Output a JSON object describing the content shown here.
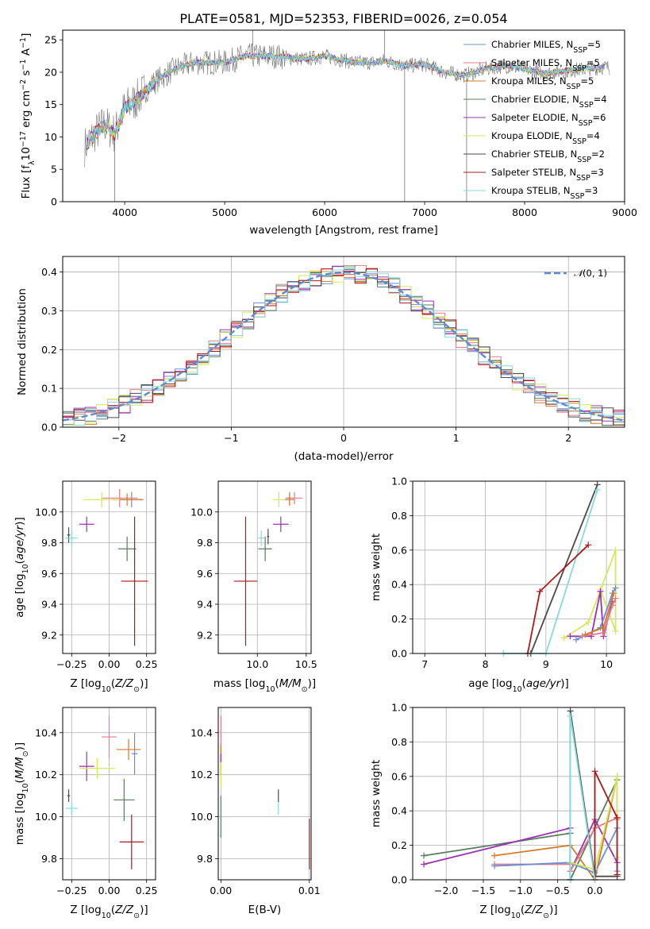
{
  "title": "PLATE=0581, MJD=52353, FIBERID=0026, z=0.054",
  "models": [
    {
      "name": "Chabrier MILES, N_SSP=5",
      "label": "Chabrier MILES, N",
      "sub": "SSP",
      "suffix": "=5",
      "color": "#6a8fd8"
    },
    {
      "name": "Salpeter MILES, N_SSP=5",
      "label": "Salpeter MILES, N",
      "sub": "SSP",
      "suffix": "=5",
      "color": "#e87a8a"
    },
    {
      "name": "Kroupa MILES, N_SSP=5",
      "label": "Kroupa MILES, N",
      "sub": "SSP",
      "suffix": "=5",
      "color": "#d97b24"
    },
    {
      "name": "Chabrier ELODIE, N_SSP=4",
      "label": "Chabrier ELODIE, N",
      "sub": "SSP",
      "suffix": "=4",
      "color": "#567f5c"
    },
    {
      "name": "Salpeter ELODIE, N_SSP=6",
      "label": "Salpeter ELODIE, N",
      "sub": "SSP",
      "suffix": "=6",
      "color": "#9b30b5"
    },
    {
      "name": "Kroupa ELODIE, N_SSP=4",
      "label": "Kroupa ELODIE, N",
      "sub": "SSP",
      "suffix": "=4",
      "color": "#d4e85a"
    },
    {
      "name": "Chabrier STELIB, N_SSP=2",
      "label": "Chabrier STELIB, N",
      "sub": "SSP",
      "suffix": "=2",
      "color": "#4a4a4a"
    },
    {
      "name": "Salpeter STELIB, N_SSP=3",
      "label": "Salpeter STELIB, N",
      "sub": "SSP",
      "suffix": "=3",
      "color": "#b01818"
    },
    {
      "name": "Kroupa STELIB, N_SSP=3",
      "label": "Kroupa STELIB, N",
      "sub": "SSP",
      "suffix": "=3",
      "color": "#86dadd"
    }
  ],
  "chart_data": [
    {
      "type": "line",
      "id": "spectrum",
      "xlabel": "wavelength [Angstrom, rest frame]",
      "ylabel": "Flux [f_λ 10^-17 erg cm^-2 s^-1 A^-1]",
      "xlim": [
        3380,
        9000
      ],
      "ylim": [
        0,
        26.5
      ],
      "xticks": [
        4000,
        5000,
        6000,
        7000,
        8000,
        9000
      ],
      "yticks": [
        0,
        5,
        10,
        15,
        20,
        25
      ],
      "spectrum_shape": {
        "x": [
          3600,
          3700,
          3800,
          3900,
          4000,
          4100,
          4300,
          4500,
          4700,
          5000,
          5200,
          5500,
          5800,
          6000,
          6300,
          6500,
          6600,
          6800,
          7000,
          7200,
          7400,
          7600,
          7800,
          8000,
          8200,
          8400,
          8600,
          8800,
          8850
        ],
        "y": [
          8.5,
          10.5,
          12,
          10.5,
          14.5,
          15.5,
          18.5,
          20.5,
          21.5,
          21.5,
          22.5,
          22.5,
          22,
          22.5,
          21.5,
          21.5,
          21.8,
          21,
          21.2,
          20,
          19.5,
          20.5,
          21,
          20.5,
          19.8,
          20.2,
          20.5,
          20.8,
          20.7
        ]
      },
      "grid": false,
      "legend": "top-right"
    },
    {
      "type": "line",
      "id": "residuals",
      "xlabel": "(data-model)/error",
      "ylabel": "Normed distribution",
      "xlim": [
        -2.5,
        2.5
      ],
      "ylim": [
        0,
        0.44
      ],
      "xticks": [
        -2,
        -1,
        0,
        1,
        2
      ],
      "yticks": [
        0.0,
        0.1,
        0.2,
        0.3,
        0.4
      ],
      "reference": {
        "label": "N(0,1)",
        "color": "#5b8ad6"
      },
      "grid": true,
      "legend": "top-right"
    },
    {
      "type": "scatter",
      "id": "age_vs_Z",
      "xlabel": "Z [log10(Z/Z⊙)]",
      "ylabel": "age [log10(age/yr)]",
      "xlim": [
        -0.31,
        0.31
      ],
      "ylim": [
        9.08,
        10.2
      ],
      "xticks": [
        -0.25,
        0.0,
        0.25
      ],
      "xticklabels": [
        "-0.25",
        "0.00",
        "0.25"
      ],
      "yticks": [
        9.2,
        9.4,
        9.6,
        9.8,
        10.0
      ],
      "points": [
        {
          "m": 0,
          "x": 0.15,
          "y": 10.08,
          "ex": 0.08,
          "ey": 0.05
        },
        {
          "m": 1,
          "x": 0.07,
          "y": 10.09,
          "ex": 0.12,
          "ey": 0.06
        },
        {
          "m": 2,
          "x": 0.12,
          "y": 10.08,
          "ex": 0.1,
          "ey": 0.04
        },
        {
          "m": 3,
          "x": 0.12,
          "y": 9.76,
          "ex": 0.06,
          "ey": 0.08
        },
        {
          "m": 4,
          "x": -0.15,
          "y": 9.92,
          "ex": 0.05,
          "ey": 0.05
        },
        {
          "m": 5,
          "x": -0.05,
          "y": 10.08,
          "ex": 0.12,
          "ey": 0.05
        },
        {
          "m": 6,
          "x": -0.27,
          "y": 9.85,
          "ex": 0.01,
          "ey": 0.05
        },
        {
          "m": 7,
          "x": 0.17,
          "y": 9.55,
          "ex": 0.09,
          "ey": 0.42
        },
        {
          "m": 8,
          "x": -0.25,
          "y": 9.83,
          "ex": 0.04,
          "ey": 0.05
        }
      ]
    },
    {
      "type": "scatter",
      "id": "age_vs_mass",
      "xlabel": "mass [log10(M/M⊙)]",
      "ylabel": "",
      "xlim": [
        9.6,
        10.55
      ],
      "ylim": [
        9.08,
        10.2
      ],
      "xticks": [
        10.0,
        10.5
      ],
      "xticklabels": [
        "10.0",
        "10.5"
      ],
      "yticks": [
        9.2,
        9.4,
        9.6,
        9.8,
        10.0
      ],
      "points": [
        {
          "m": 0,
          "x": 10.33,
          "y": 10.09,
          "ex": 0.04,
          "ey": 0.04
        },
        {
          "m": 1,
          "x": 10.38,
          "y": 10.09,
          "ex": 0.08,
          "ey": 0.04
        },
        {
          "m": 2,
          "x": 10.33,
          "y": 10.08,
          "ex": 0.05,
          "ey": 0.04
        },
        {
          "m": 3,
          "x": 10.08,
          "y": 9.76,
          "ex": 0.07,
          "ey": 0.08
        },
        {
          "m": 4,
          "x": 10.24,
          "y": 9.92,
          "ex": 0.08,
          "ey": 0.05
        },
        {
          "m": 5,
          "x": 10.22,
          "y": 10.08,
          "ex": 0.06,
          "ey": 0.05
        },
        {
          "m": 6,
          "x": 10.11,
          "y": 9.84,
          "ex": 0.01,
          "ey": 0.05
        },
        {
          "m": 7,
          "x": 9.88,
          "y": 9.55,
          "ex": 0.12,
          "ey": 0.42
        },
        {
          "m": 8,
          "x": 10.04,
          "y": 9.83,
          "ex": 0.03,
          "ey": 0.05
        }
      ]
    },
    {
      "type": "line",
      "id": "massweight_vs_age",
      "xlabel": "age [log10(age/yr)]",
      "ylabel": "mass weight",
      "xlim": [
        6.8,
        10.3
      ],
      "ylim": [
        0,
        1
      ],
      "xticks": [
        7,
        8,
        9,
        10
      ],
      "yticks": [
        0.0,
        0.2,
        0.4,
        0.6,
        0.8,
        1.0
      ],
      "series": [
        {
          "m": 3,
          "x": [
            6.97,
            9.7,
            9.8,
            9.85
          ],
          "y": [
            0.0,
            0.58,
            0.15,
            0.27
          ]
        },
        {
          "m": 6,
          "x": 8.75,
          "x2": null,
          "y": null,
          "pts": [
            [
              8.75,
              0.0
            ],
            [
              9.85,
              0.98
            ]
          ]
        },
        {
          "m": 8,
          "pts": [
            [
              8.3,
              0.0
            ],
            [
              9.0,
              0.0
            ],
            [
              9.85,
              0.95
            ]
          ]
        },
        {
          "m": 7,
          "pts": [
            [
              8.7,
              0.0
            ],
            [
              8.9,
              0.36
            ],
            [
              9.7,
              0.63
            ]
          ]
        },
        {
          "m": 5,
          "pts": [
            [
              9.3,
              0.09
            ],
            [
              9.7,
              0.18
            ],
            [
              10.15,
              0.6
            ],
            [
              10.15,
              0.13
            ],
            [
              9.9,
              0.37
            ]
          ]
        },
        {
          "m": 4,
          "pts": [
            [
              9.4,
              0.1
            ],
            [
              9.75,
              0.1
            ],
            [
              9.9,
              0.36
            ],
            [
              9.95,
              0.1
            ],
            [
              10.1,
              0.3
            ]
          ]
        },
        {
          "m": 0,
          "pts": [
            [
              9.5,
              0.08
            ],
            [
              9.9,
              0.15
            ],
            [
              10.1,
              0.35
            ],
            [
              10.15,
              0.38
            ]
          ]
        },
        {
          "m": 1,
          "pts": [
            [
              9.6,
              0.1
            ],
            [
              9.95,
              0.12
            ],
            [
              10.1,
              0.28
            ],
            [
              10.15,
              0.32
            ]
          ]
        },
        {
          "m": 2,
          "pts": [
            [
              9.65,
              0.11
            ],
            [
              9.95,
              0.15
            ],
            [
              10.12,
              0.35
            ]
          ]
        }
      ]
    },
    {
      "type": "scatter",
      "id": "mass_vs_Z",
      "xlabel": "Z [log10(Z/Z⊙)]",
      "ylabel": "mass [log10(M/M⊙)]",
      "xlim": [
        -0.31,
        0.31
      ],
      "ylim": [
        9.7,
        10.52
      ],
      "xticks": [
        -0.25,
        0.0,
        0.25
      ],
      "xticklabels": [
        "-0.25",
        "0.00",
        "0.25"
      ],
      "yticks": [
        9.8,
        10.0,
        10.2,
        10.4
      ],
      "points": [
        {
          "m": 0,
          "x": 0.17,
          "y": 10.3,
          "ex": 0.02,
          "ey": 0.1
        },
        {
          "m": 1,
          "x": 0.0,
          "y": 10.38,
          "ex": 0.05,
          "ey": 0.1
        },
        {
          "m": 2,
          "x": 0.13,
          "y": 10.32,
          "ex": 0.08,
          "ey": 0.05
        },
        {
          "m": 3,
          "x": 0.1,
          "y": 10.08,
          "ex": 0.07,
          "ey": 0.1
        },
        {
          "m": 4,
          "x": -0.15,
          "y": 10.24,
          "ex": 0.05,
          "ey": 0.07
        },
        {
          "m": 5,
          "x": -0.08,
          "y": 10.23,
          "ex": 0.12,
          "ey": 0.05
        },
        {
          "m": 6,
          "x": -0.27,
          "y": 10.1,
          "ex": 0.01,
          "ey": 0.03
        },
        {
          "m": 7,
          "x": 0.15,
          "y": 9.88,
          "ex": 0.08,
          "ey": 0.13
        },
        {
          "m": 8,
          "x": -0.25,
          "y": 10.04,
          "ex": 0.04,
          "ey": 0.03
        }
      ]
    },
    {
      "type": "scatter",
      "id": "mass_vs_EBV",
      "xlabel": "E(B-V)",
      "ylabel": "",
      "xlim": [
        -0.0003,
        0.0102
      ],
      "ylim": [
        9.7,
        10.52
      ],
      "xticks": [
        0.0,
        0.01
      ],
      "xticklabels": [
        "0.00",
        "0.01"
      ],
      "yticks": [
        9.8,
        10.0,
        10.2,
        10.4
      ],
      "points": [
        {
          "m": 0,
          "x": 0.0,
          "y": 10.3,
          "ex": 0.0,
          "ey": 0.05
        },
        {
          "m": 1,
          "x": 0.0,
          "y": 10.4,
          "ex": 0.0,
          "ey": 0.08
        },
        {
          "m": 2,
          "x": 0.0,
          "y": 10.3,
          "ex": 0.0,
          "ey": 0.04
        },
        {
          "m": 3,
          "x": 0.0,
          "y": 10.0,
          "ex": 0.0,
          "ey": 0.1
        },
        {
          "m": 4,
          "x": 0.0,
          "y": 10.25,
          "ex": 0.0,
          "ey": 0.05
        },
        {
          "m": 5,
          "x": 0.0,
          "y": 10.2,
          "ex": 0.0,
          "ey": 0.06
        },
        {
          "m": 6,
          "x": 0.0065,
          "y": 10.1,
          "ex": 0.0,
          "ey": 0.03
        },
        {
          "m": 7,
          "x": 0.01,
          "y": 9.87,
          "ex": 0.0,
          "ey": 0.12
        },
        {
          "m": 8,
          "x": 0.0065,
          "y": 10.04,
          "ex": 0.0,
          "ey": 0.03
        }
      ]
    },
    {
      "type": "line",
      "id": "massweight_vs_Z",
      "xlabel": "Z [log10(Z/Z⊙)]",
      "ylabel": "mass weight",
      "xlim": [
        -2.45,
        0.4
      ],
      "ylim": [
        0,
        1
      ],
      "xticks": [
        -2.0,
        -1.5,
        -1.0,
        -0.5,
        0.0
      ],
      "yticks": [
        0.0,
        0.2,
        0.4,
        0.6,
        0.8,
        1.0
      ],
      "series": [
        {
          "m": 3,
          "pts": [
            [
              -2.3,
              0.14
            ],
            [
              -0.33,
              0.27
            ],
            [
              -0.33,
              0.0
            ],
            [
              0.3,
              0.58
            ]
          ]
        },
        {
          "m": 4,
          "pts": [
            [
              -2.3,
              0.09
            ],
            [
              -0.33,
              0.3
            ],
            [
              -0.33,
              0.05
            ],
            [
              0.0,
              0.35
            ],
            [
              0.3,
              0.1
            ]
          ]
        },
        {
          "m": 2,
          "pts": [
            [
              -1.35,
              0.14
            ],
            [
              -0.33,
              0.2
            ],
            [
              0.0,
              0.0
            ],
            [
              0.3,
              0.6
            ],
            [
              0.3,
              0.35
            ]
          ]
        },
        {
          "m": 1,
          "pts": [
            [
              -1.35,
              0.09
            ],
            [
              -0.33,
              0.09
            ],
            [
              -0.33,
              0.05
            ],
            [
              0.0,
              0.3
            ],
            [
              0.3,
              0.36
            ]
          ]
        },
        {
          "m": 0,
          "pts": [
            [
              -1.35,
              0.08
            ],
            [
              -0.33,
              0.1
            ],
            [
              0.0,
              0.04
            ],
            [
              0.3,
              0.3
            ],
            [
              0.3,
              0.05
            ]
          ]
        },
        {
          "m": 5,
          "pts": [
            [
              -0.33,
              0.1
            ],
            [
              0.0,
              0.06
            ],
            [
              0.3,
              0.6
            ],
            [
              0.3,
              0.13
            ]
          ]
        },
        {
          "m": 6,
          "pts": [
            [
              -0.33,
              0.0
            ],
            [
              -0.33,
              0.98
            ],
            [
              0.0,
              0.02
            ],
            [
              0.3,
              0.02
            ]
          ]
        },
        {
          "m": 7,
          "pts": [
            [
              0.0,
              0.0
            ],
            [
              0.0,
              0.63
            ],
            [
              0.3,
              0.36
            ],
            [
              0.3,
              0.03
            ]
          ]
        },
        {
          "m": 8,
          "pts": [
            [
              -0.33,
              0.0
            ],
            [
              -0.33,
              0.95
            ],
            [
              0.0,
              0.0
            ]
          ]
        }
      ]
    }
  ]
}
